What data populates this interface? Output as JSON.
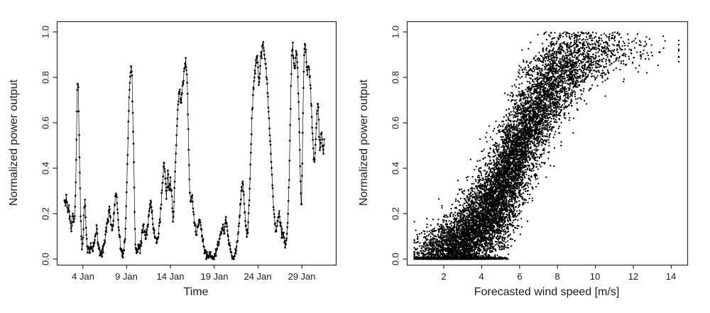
{
  "figure": {
    "background": "#ffffff",
    "point_color": "#000000",
    "axis_color": "#2b2b2b",
    "text_color": "#1c1c1c"
  },
  "chart_data": [
    {
      "id": "normalized-power-time-series",
      "type": "line",
      "title": "",
      "xlabel": "Time",
      "ylabel": "Normalized power output",
      "x_ticks": [
        "4 Jan",
        "9 Jan",
        "14 Jan",
        "19 Jan",
        "24 Jan",
        "29 Jan"
      ],
      "x_tick_days": [
        4,
        9,
        14,
        19,
        24,
        29
      ],
      "y_ticks": [
        "0.0",
        "0.2",
        "0.4",
        "0.6",
        "0.8",
        "1.0"
      ],
      "y_tick_values": [
        0.0,
        0.2,
        0.4,
        0.6,
        0.8,
        1.0
      ],
      "xlim_days": [
        1.0,
        32.9
      ],
      "ylim": [
        -0.04,
        1.04
      ],
      "grid": false,
      "legend": "none",
      "marker": "filled-circle",
      "line_style": "thin-solid-between-points",
      "sample_step_days": 0.0417,
      "noise_sd": 0.01,
      "seed": 11,
      "keypoints": [
        [
          1.9,
          0.27
        ],
        [
          2.0,
          0.25
        ],
        [
          2.1,
          0.28
        ],
        [
          2.2,
          0.24
        ],
        [
          2.3,
          0.21
        ],
        [
          2.4,
          0.23
        ],
        [
          2.5,
          0.18
        ],
        [
          2.6,
          0.15
        ],
        [
          2.7,
          0.13
        ],
        [
          2.8,
          0.17
        ],
        [
          2.9,
          0.2
        ],
        [
          3.0,
          0.15
        ],
        [
          3.1,
          0.22
        ],
        [
          3.2,
          0.35
        ],
        [
          3.28,
          0.55
        ],
        [
          3.35,
          0.72
        ],
        [
          3.42,
          0.8
        ],
        [
          3.5,
          0.73
        ],
        [
          3.58,
          0.5
        ],
        [
          3.65,
          0.4
        ],
        [
          3.72,
          0.22
        ],
        [
          3.8,
          0.12
        ],
        [
          3.9,
          0.05
        ],
        [
          4.0,
          0.08
        ],
        [
          4.15,
          0.22
        ],
        [
          4.25,
          0.27
        ],
        [
          4.35,
          0.15
        ],
        [
          4.5,
          0.05
        ],
        [
          4.6,
          0.05
        ],
        [
          4.75,
          0.03
        ],
        [
          4.9,
          0.05
        ],
        [
          5.05,
          0.04
        ],
        [
          5.2,
          0.05
        ],
        [
          5.4,
          0.1
        ],
        [
          5.6,
          0.13
        ],
        [
          5.75,
          0.06
        ],
        [
          5.95,
          0.02
        ],
        [
          6.1,
          0.03
        ],
        [
          6.3,
          0.05
        ],
        [
          6.5,
          0.08
        ],
        [
          6.7,
          0.13
        ],
        [
          6.9,
          0.18
        ],
        [
          7.05,
          0.24
        ],
        [
          7.2,
          0.16
        ],
        [
          7.35,
          0.12
        ],
        [
          7.5,
          0.18
        ],
        [
          7.65,
          0.24
        ],
        [
          7.8,
          0.3
        ],
        [
          7.95,
          0.22
        ],
        [
          8.1,
          0.12
        ],
        [
          8.3,
          0.05
        ],
        [
          8.5,
          0.02
        ],
        [
          8.7,
          0.04
        ],
        [
          8.9,
          0.15
        ],
        [
          9.0,
          0.3
        ],
        [
          9.1,
          0.45
        ],
        [
          9.2,
          0.6
        ],
        [
          9.3,
          0.72
        ],
        [
          9.42,
          0.8
        ],
        [
          9.52,
          0.85
        ],
        [
          9.62,
          0.78
        ],
        [
          9.7,
          0.62
        ],
        [
          9.78,
          0.5
        ],
        [
          9.85,
          0.35
        ],
        [
          9.92,
          0.18
        ],
        [
          10.0,
          0.06
        ],
        [
          10.15,
          0.03
        ],
        [
          10.3,
          0.06
        ],
        [
          10.5,
          0.04
        ],
        [
          10.7,
          0.08
        ],
        [
          10.9,
          0.16
        ],
        [
          11.05,
          0.12
        ],
        [
          11.2,
          0.09
        ],
        [
          11.4,
          0.14
        ],
        [
          11.6,
          0.22
        ],
        [
          11.8,
          0.24
        ],
        [
          11.95,
          0.18
        ],
        [
          12.1,
          0.12
        ],
        [
          12.3,
          0.1
        ],
        [
          12.5,
          0.07
        ],
        [
          12.65,
          0.12
        ],
        [
          12.8,
          0.18
        ],
        [
          12.95,
          0.24
        ],
        [
          13.1,
          0.32
        ],
        [
          13.25,
          0.45
        ],
        [
          13.4,
          0.35
        ],
        [
          13.55,
          0.28
        ],
        [
          13.7,
          0.38
        ],
        [
          13.85,
          0.3
        ],
        [
          14.0,
          0.35
        ],
        [
          14.15,
          0.28
        ],
        [
          14.3,
          0.15
        ],
        [
          14.45,
          0.3
        ],
        [
          14.6,
          0.45
        ],
        [
          14.75,
          0.6
        ],
        [
          14.9,
          0.7
        ],
        [
          15.05,
          0.75
        ],
        [
          15.15,
          0.68
        ],
        [
          15.3,
          0.73
        ],
        [
          15.45,
          0.78
        ],
        [
          15.6,
          0.84
        ],
        [
          15.75,
          0.88
        ],
        [
          15.9,
          0.8
        ],
        [
          16.0,
          0.62
        ],
        [
          16.1,
          0.45
        ],
        [
          16.2,
          0.3
        ],
        [
          16.35,
          0.25
        ],
        [
          16.5,
          0.28
        ],
        [
          16.65,
          0.2
        ],
        [
          16.8,
          0.14
        ],
        [
          16.95,
          0.1
        ],
        [
          17.1,
          0.14
        ],
        [
          17.3,
          0.18
        ],
        [
          17.5,
          0.13
        ],
        [
          17.7,
          0.08
        ],
        [
          17.9,
          0.04
        ],
        [
          18.1,
          0.015
        ],
        [
          18.3,
          0.005
        ],
        [
          18.55,
          0.01
        ],
        [
          18.8,
          0.005
        ],
        [
          19.05,
          0.015
        ],
        [
          19.3,
          0.04
        ],
        [
          19.55,
          0.08
        ],
        [
          19.8,
          0.12
        ],
        [
          20.0,
          0.14
        ],
        [
          20.15,
          0.11
        ],
        [
          20.3,
          0.18
        ],
        [
          20.45,
          0.14
        ],
        [
          20.6,
          0.09
        ],
        [
          20.8,
          0.04
        ],
        [
          21.0,
          0.015
        ],
        [
          21.2,
          0.005
        ],
        [
          21.45,
          0.03
        ],
        [
          21.7,
          0.1
        ],
        [
          21.9,
          0.2
        ],
        [
          22.1,
          0.3
        ],
        [
          22.25,
          0.35
        ],
        [
          22.4,
          0.26
        ],
        [
          22.55,
          0.17
        ],
        [
          22.7,
          0.11
        ],
        [
          22.85,
          0.14
        ],
        [
          23.0,
          0.25
        ],
        [
          23.15,
          0.45
        ],
        [
          23.3,
          0.62
        ],
        [
          23.45,
          0.72
        ],
        [
          23.6,
          0.8
        ],
        [
          23.75,
          0.87
        ],
        [
          23.9,
          0.9
        ],
        [
          24.0,
          0.84
        ],
        [
          24.1,
          0.76
        ],
        [
          24.2,
          0.83
        ],
        [
          24.3,
          0.9
        ],
        [
          24.4,
          0.87
        ],
        [
          24.5,
          0.93
        ],
        [
          24.6,
          0.95
        ],
        [
          24.7,
          0.9
        ],
        [
          24.8,
          0.87
        ],
        [
          24.9,
          0.84
        ],
        [
          25.0,
          0.8
        ],
        [
          25.1,
          0.73
        ],
        [
          25.25,
          0.62
        ],
        [
          25.4,
          0.5
        ],
        [
          25.55,
          0.4
        ],
        [
          25.7,
          0.28
        ],
        [
          25.85,
          0.18
        ],
        [
          26.0,
          0.12
        ],
        [
          26.2,
          0.16
        ],
        [
          26.4,
          0.2
        ],
        [
          26.55,
          0.16
        ],
        [
          26.7,
          0.12
        ],
        [
          26.9,
          0.1
        ],
        [
          27.1,
          0.06
        ],
        [
          27.25,
          0.09
        ],
        [
          27.4,
          0.18
        ],
        [
          27.55,
          0.35
        ],
        [
          27.65,
          0.55
        ],
        [
          27.75,
          0.75
        ],
        [
          27.85,
          0.9
        ],
        [
          27.95,
          0.94
        ],
        [
          28.05,
          0.88
        ],
        [
          28.15,
          0.82
        ],
        [
          28.25,
          0.86
        ],
        [
          28.35,
          0.92
        ],
        [
          28.45,
          0.88
        ],
        [
          28.55,
          0.8
        ],
        [
          28.65,
          0.66
        ],
        [
          28.75,
          0.5
        ],
        [
          28.85,
          0.32
        ],
        [
          28.95,
          0.22
        ],
        [
          29.05,
          0.45
        ],
        [
          29.15,
          0.7
        ],
        [
          29.25,
          0.88
        ],
        [
          29.35,
          0.95
        ],
        [
          29.45,
          0.9
        ],
        [
          29.55,
          0.84
        ],
        [
          29.65,
          0.82
        ],
        [
          29.75,
          0.86
        ],
        [
          29.85,
          0.83
        ],
        [
          29.95,
          0.78
        ],
        [
          30.05,
          0.7
        ],
        [
          30.15,
          0.6
        ],
        [
          30.25,
          0.52
        ],
        [
          30.35,
          0.45
        ],
        [
          30.45,
          0.42
        ],
        [
          30.55,
          0.5
        ],
        [
          30.65,
          0.58
        ],
        [
          30.75,
          0.65
        ],
        [
          30.85,
          0.7
        ],
        [
          30.95,
          0.55
        ],
        [
          31.05,
          0.48
        ],
        [
          31.15,
          0.52
        ],
        [
          31.25,
          0.56
        ],
        [
          31.35,
          0.5
        ],
        [
          31.45,
          0.47
        ],
        [
          31.55,
          0.52
        ]
      ]
    },
    {
      "id": "power-curve-scatter",
      "type": "scatter",
      "title": "",
      "xlabel": "Forecasted wind speed [m/s]",
      "ylabel": "Normalized power output",
      "x_ticks": [
        "2",
        "4",
        "6",
        "8",
        "10",
        "12",
        "14"
      ],
      "x_tick_values": [
        2,
        4,
        6,
        8,
        10,
        12,
        14
      ],
      "y_ticks": [
        "0.0",
        "0.2",
        "0.4",
        "0.6",
        "0.8",
        "1.0"
      ],
      "y_tick_values": [
        0.0,
        0.2,
        0.4,
        0.6,
        0.8,
        1.0
      ],
      "xlim": [
        0.0,
        14.9
      ],
      "ylim": [
        -0.04,
        1.04
      ],
      "grid": false,
      "legend": "none",
      "marker": "filled-circle",
      "n_points": 11000,
      "seed": 42,
      "x_distribution": {
        "type": "weibull",
        "shape": 2.15,
        "scale": 5.45,
        "min": 0.45,
        "max": 14.4
      },
      "power_curve": {
        "type": "logistic",
        "max": 0.93,
        "midpoint": 5.9,
        "width": 1.25
      },
      "noise": {
        "base_sd": 0.035,
        "peak_sd": 0.095,
        "center": 6.0,
        "spread": 2.6
      },
      "zero_output": {
        "intercept": 0.62,
        "slope_per_ms": 0.115
      },
      "outliers": {
        "prob": 0.02,
        "sd": 0.13
      }
    }
  ]
}
